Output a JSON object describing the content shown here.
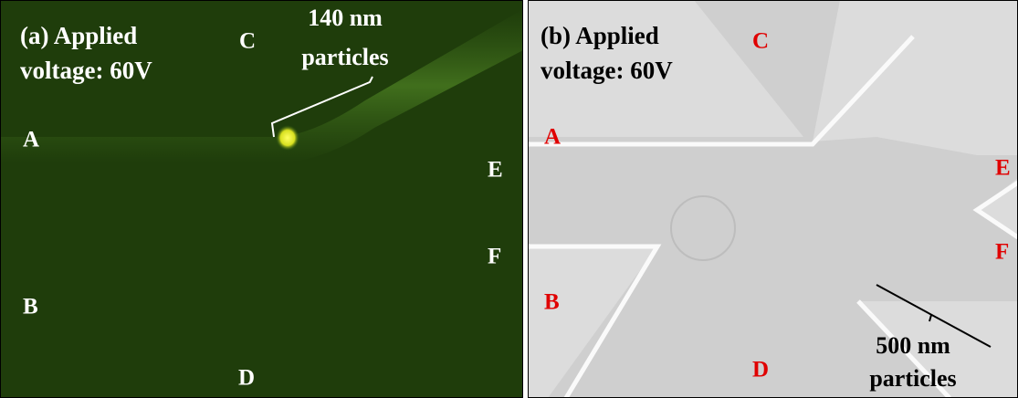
{
  "panels": [
    {
      "caption": [
        "(a) Applied",
        "voltage: 60V"
      ],
      "labels": {
        "A": "A",
        "B": "B",
        "C": "C",
        "D": "D",
        "E": "E",
        "F": "F"
      },
      "annotation": [
        "140 nm",
        "particles"
      ]
    },
    {
      "caption": [
        "(b) Applied",
        "voltage: 60V"
      ],
      "labels": {
        "A": "A",
        "B": "B",
        "C": "C",
        "D": "D",
        "E": "E",
        "F": "F"
      },
      "annotation": [
        "500 nm",
        "particles"
      ]
    }
  ]
}
